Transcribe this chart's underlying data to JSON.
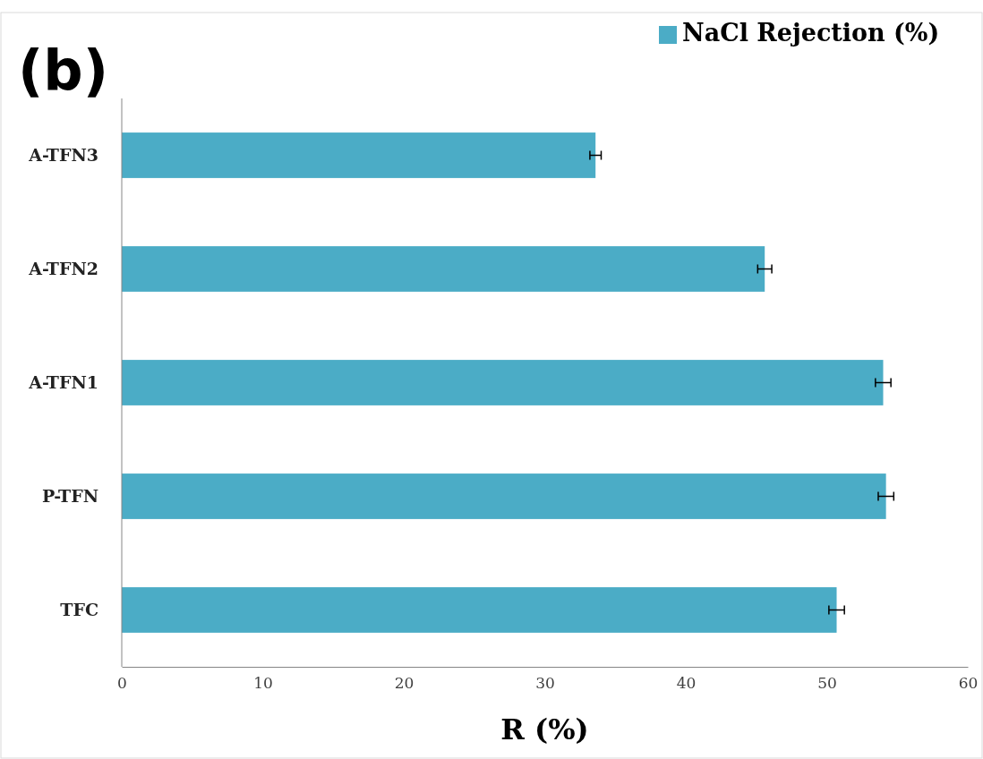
{
  "chart_data": {
    "type": "bar",
    "orientation": "horizontal",
    "title": "(b)",
    "xlabel": "R (%)",
    "categories": [
      "A-TFN3",
      "A-TFN2",
      "A-TFN1",
      "P-TFN",
      "TFC"
    ],
    "series": [
      {
        "name": "NaCl Rejection (%)",
        "color": "#4bacc6",
        "values": [
          33.6,
          45.6,
          54.0,
          54.2,
          50.7
        ],
        "errors": [
          0.4,
          0.5,
          0.55,
          0.55,
          0.55
        ]
      }
    ],
    "xlim": [
      0,
      60
    ],
    "xticks": [
      0,
      10,
      20,
      30,
      40,
      50,
      60
    ],
    "grid": false,
    "legend": "top right"
  }
}
